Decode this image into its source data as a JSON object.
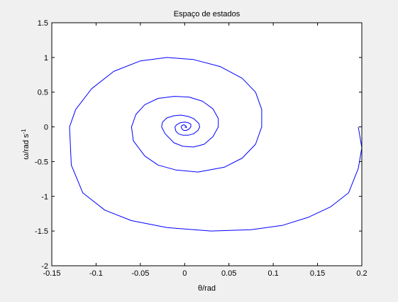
{
  "figure": {
    "background": "#f0f0f0",
    "axes_background": "#ffffff"
  },
  "chart_data": {
    "type": "line",
    "title": "Espaço de estados",
    "xlabel": "θ/rad",
    "ylabel_main": "ω/rad s",
    "ylabel_superscript": "-1",
    "xlim": [
      -0.15,
      0.2
    ],
    "ylim": [
      -2,
      1.5
    ],
    "xticks": [
      -0.15,
      -0.1,
      -0.05,
      0,
      0.05,
      0.1,
      0.15,
      0.2
    ],
    "xtick_labels": [
      "-0.15",
      "-0.1",
      "-0.05",
      "0",
      "0.05",
      "0.1",
      "0.15",
      "0.2"
    ],
    "yticks": [
      -2,
      -1.5,
      -1,
      -0.5,
      0,
      0.5,
      1,
      1.5
    ],
    "ytick_labels": [
      "-2",
      "-1.5",
      "-1",
      "-0.5",
      "0",
      "0.5",
      "1",
      "1.5"
    ],
    "grid": false,
    "series": [
      {
        "color": "#0000ff",
        "x": [
          0.196,
          0.2,
          0.196,
          0.185,
          0.165,
          0.14,
          0.11,
          0.075,
          0.03,
          -0.02,
          -0.06,
          -0.09,
          -0.115,
          -0.128,
          -0.13,
          -0.123,
          -0.105,
          -0.08,
          -0.05,
          -0.02,
          0.01,
          0.04,
          0.065,
          0.08,
          0.087,
          0.087,
          0.08,
          0.065,
          0.045,
          0.015,
          -0.01,
          -0.03,
          -0.045,
          -0.058,
          -0.06,
          -0.055,
          -0.045,
          -0.03,
          -0.012,
          0.005,
          0.02,
          0.032,
          0.038,
          0.038,
          0.032,
          0.022,
          0.01,
          -0.002,
          -0.012,
          -0.022,
          -0.026,
          -0.025,
          -0.02,
          -0.012,
          -0.004,
          0.004,
          0.01,
          0.016,
          0.017,
          0.015,
          0.01,
          0.004,
          -0.002,
          -0.007,
          -0.01,
          -0.011,
          -0.009,
          -0.005,
          0,
          0.004,
          0.007,
          0.007,
          0.005,
          0.002,
          -0.001,
          -0.003,
          -0.004,
          -0.003,
          -0.001,
          0.001,
          0.002,
          0.002,
          0
        ],
        "y": [
          0,
          -0.3,
          -0.6,
          -0.95,
          -1.15,
          -1.3,
          -1.42,
          -1.48,
          -1.5,
          -1.45,
          -1.35,
          -1.2,
          -0.95,
          -0.55,
          0,
          0.25,
          0.55,
          0.8,
          0.95,
          1.0,
          0.97,
          0.87,
          0.7,
          0.5,
          0.25,
          0,
          -0.25,
          -0.45,
          -0.58,
          -0.65,
          -0.62,
          -0.55,
          -0.42,
          -0.2,
          0,
          0.18,
          0.32,
          0.41,
          0.44,
          0.43,
          0.37,
          0.26,
          0.12,
          0,
          -0.14,
          -0.25,
          -0.29,
          -0.28,
          -0.23,
          -0.1,
          0,
          0.07,
          0.13,
          0.16,
          0.17,
          0.15,
          0.12,
          0.05,
          0,
          -0.05,
          -0.1,
          -0.12,
          -0.12,
          -0.1,
          -0.06,
          0,
          0.03,
          0.06,
          0.07,
          0.06,
          0.04,
          0,
          -0.03,
          -0.05,
          -0.05,
          -0.03,
          0,
          0.02,
          0.03,
          0.02,
          0,
          -0.01,
          0
        ]
      }
    ]
  }
}
